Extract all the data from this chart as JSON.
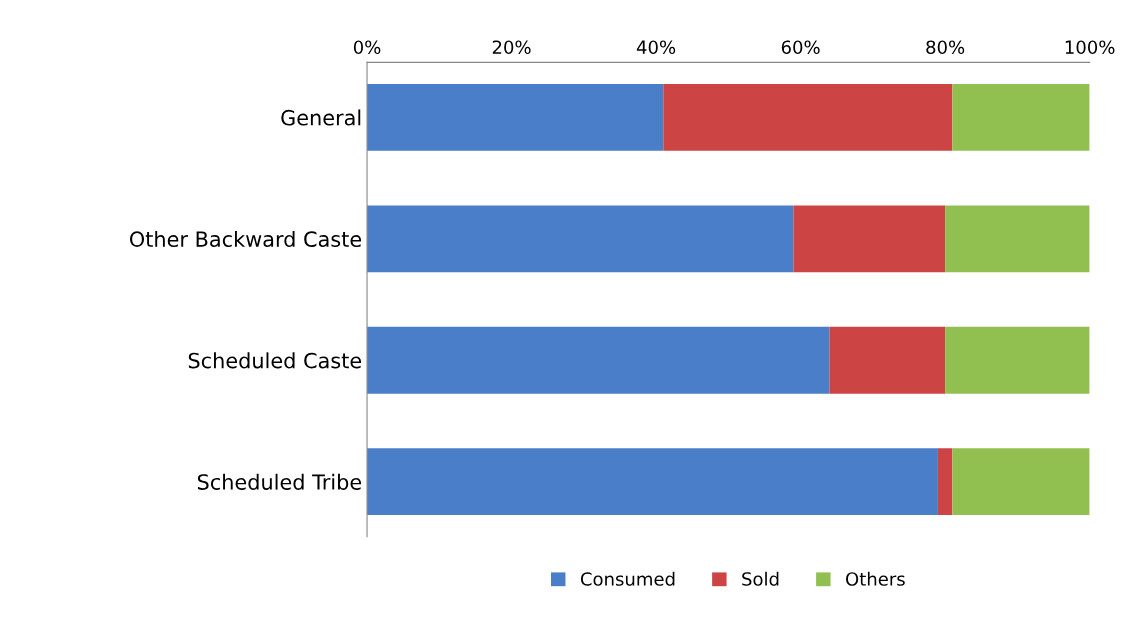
{
  "chart_data": {
    "type": "bar",
    "orientation": "horizontal",
    "stacked": true,
    "categories": [
      "General",
      "Other Backward Caste",
      "Scheduled Caste",
      "Scheduled Tribe"
    ],
    "series": [
      {
        "name": "Consumed",
        "color": "#4a7ec8",
        "values": [
          41,
          59,
          64,
          79
        ]
      },
      {
        "name": "Sold",
        "color": "#cc4444",
        "values": [
          40,
          21,
          16,
          2
        ]
      },
      {
        "name": "Others",
        "color": "#92c050",
        "values": [
          19,
          20,
          20,
          19
        ]
      }
    ],
    "xlim": [
      0,
      100
    ],
    "xticks": [
      {
        "value": 0,
        "label": "0%"
      },
      {
        "value": 20,
        "label": "20%"
      },
      {
        "value": 40,
        "label": "40%"
      },
      {
        "value": 60,
        "label": "60%"
      },
      {
        "value": 80,
        "label": "80%"
      },
      {
        "value": 100,
        "label": "100%"
      }
    ],
    "grid": false,
    "legend": "bottom"
  }
}
